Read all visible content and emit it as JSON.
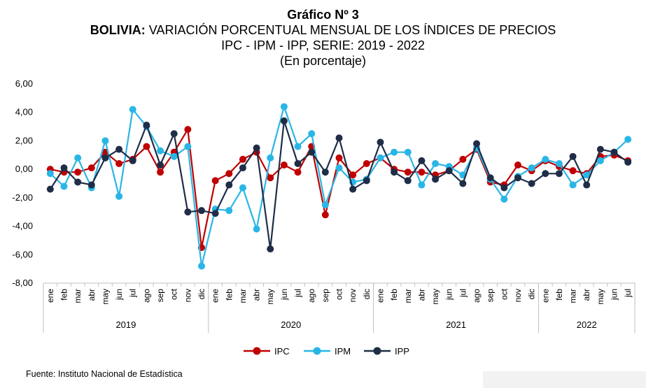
{
  "header": {
    "line1": "Gráfico Nº 3",
    "line2_bold": "BOLIVIA:",
    "line2_rest": " VARIACIÓN PORCENTUAL MENSUAL DE LOS ÍNDICES DE PRECIOS",
    "line3": "IPC - IPM - IPP, SERIE: 2019 - 2022",
    "line4": "(En porcentaje)"
  },
  "source": "Fuente: Instituto Nacional de Estadística",
  "chart_data": {
    "type": "line",
    "ylim": [
      -8,
      6
    ],
    "yticks": [
      "-8,00",
      "-6,00",
      "-4,00",
      "-2,00",
      "0,00",
      "2,00",
      "4,00",
      "6,00"
    ],
    "ytick_values": [
      -8,
      -6,
      -4,
      -2,
      0,
      2,
      4,
      6
    ],
    "grid": false,
    "legend_position": "bottom",
    "months": [
      "ene",
      "feb",
      "mar",
      "abr",
      "may",
      "jun",
      "jul",
      "ago",
      "sep",
      "oct",
      "nov",
      "dic",
      "ene",
      "feb",
      "mar",
      "abr",
      "may",
      "jun",
      "jul",
      "ago",
      "sep",
      "oct",
      "nov",
      "dic",
      "ene",
      "feb",
      "mar",
      "abr",
      "may",
      "jun",
      "jul",
      "ago",
      "sep",
      "oct",
      "nov",
      "dic",
      "ene",
      "feb",
      "mar",
      "abr",
      "may",
      "jun",
      "jul"
    ],
    "years": [
      {
        "label": "2019",
        "count": 12
      },
      {
        "label": "2020",
        "count": 12
      },
      {
        "label": "2021",
        "count": 12
      },
      {
        "label": "2022",
        "count": 7
      }
    ],
    "series": [
      {
        "name": "IPC",
        "color": "#c00000",
        "values": [
          0.0,
          -0.2,
          -0.2,
          0.1,
          1.2,
          0.4,
          0.7,
          1.6,
          -0.2,
          1.2,
          2.8,
          -5.5,
          -0.8,
          -0.3,
          0.7,
          1.2,
          -0.6,
          0.3,
          -0.2,
          1.6,
          -3.2,
          0.8,
          -0.4,
          0.4,
          0.8,
          0.0,
          -0.2,
          -0.2,
          -0.4,
          -0.1,
          0.7,
          1.4,
          -0.9,
          -1.1,
          0.3,
          -0.1,
          0.6,
          0.2,
          -0.1,
          -0.3,
          0.9,
          1.0,
          0.6
        ]
      },
      {
        "name": "IPM",
        "color": "#29b6e6",
        "values": [
          -0.3,
          -1.2,
          0.8,
          -1.3,
          2.0,
          -1.9,
          4.2,
          3.0,
          1.3,
          0.9,
          1.6,
          -6.8,
          -2.8,
          -2.9,
          -1.3,
          -4.2,
          0.8,
          4.4,
          1.6,
          2.5,
          -2.5,
          0.1,
          -0.9,
          -0.7,
          0.8,
          1.2,
          1.2,
          -1.1,
          0.4,
          0.2,
          -0.4,
          1.5,
          -0.7,
          -2.1,
          -0.5,
          0.1,
          0.7,
          0.4,
          -1.1,
          -0.4,
          0.6,
          1.2,
          2.1
        ]
      },
      {
        "name": "IPP",
        "color": "#1f2d47",
        "values": [
          -1.4,
          0.1,
          -0.9,
          -1.1,
          0.8,
          1.4,
          0.6,
          3.1,
          0.3,
          2.5,
          -3.0,
          -2.9,
          -3.1,
          -1.1,
          0.1,
          1.5,
          -5.6,
          3.4,
          0.4,
          1.2,
          -0.2,
          2.2,
          -1.4,
          -0.8,
          1.9,
          -0.2,
          -0.8,
          0.6,
          -0.7,
          -0.1,
          -1.0,
          1.8,
          -0.6,
          -1.3,
          -0.6,
          -1.0,
          -0.3,
          -0.3,
          0.9,
          -1.1,
          1.4,
          1.2,
          0.5
        ]
      }
    ]
  }
}
